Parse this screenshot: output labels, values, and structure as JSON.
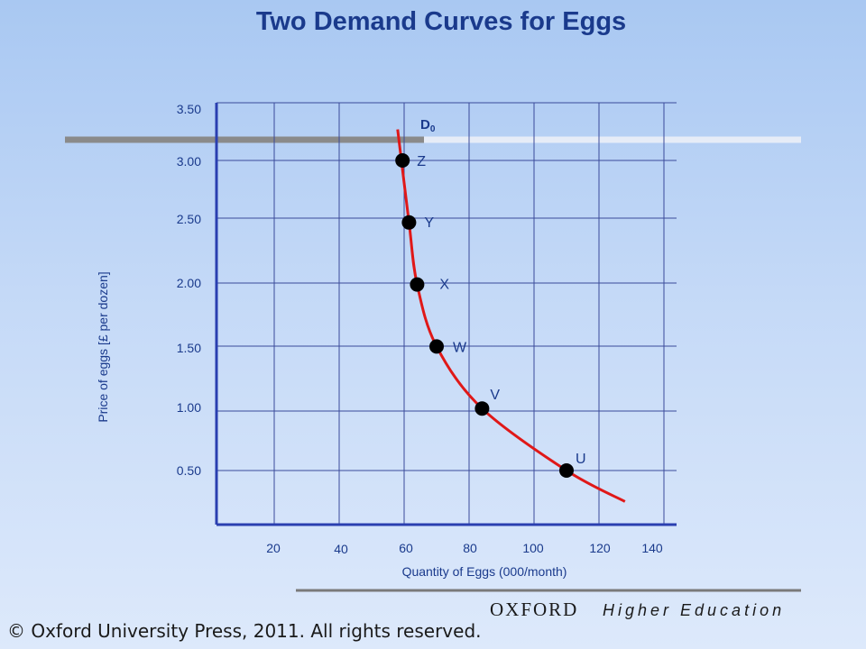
{
  "slide": {
    "title": "Two Demand Curves for Eggs",
    "brand_name": "OXFORD",
    "brand_sub": "Higher Education",
    "copyright": "© Oxford University Press, 2011. All rights reserved."
  },
  "colors": {
    "axis": "#2a3fb0",
    "grid": "#3a4a9a",
    "curve": "#e01818",
    "point": "#000000",
    "text": "#1a3a8c",
    "accent_bar": "#8a8a8a",
    "footer_line": "#7a7a7a"
  },
  "chart_data": {
    "type": "line",
    "title": "Two Demand Curves for Eggs",
    "xlabel": "Quantity of Eggs (000/month)",
    "ylabel": "Price of eggs [£ per dozen]",
    "x_ticks": [
      "20",
      "40",
      "60",
      "80",
      "100",
      "120",
      "140"
    ],
    "y_ticks": [
      "3.50",
      "3.00",
      "2.50",
      "2.00",
      "1.50",
      "1.00",
      "0.50"
    ],
    "grid": true,
    "series": [
      {
        "name": "D0",
        "label_main": "D",
        "label_sub": "0",
        "curve": [
          {
            "x": 58,
            "y": 3.25
          },
          {
            "x": 61.5,
            "y": 2.5
          },
          {
            "x": 64,
            "y": 2.0
          },
          {
            "x": 70,
            "y": 1.5
          },
          {
            "x": 84,
            "y": 1.0
          },
          {
            "x": 110,
            "y": 0.5
          },
          {
            "x": 128,
            "y": 0.25
          }
        ],
        "points": [
          {
            "label": "Z",
            "x": 59.5,
            "y": 3.0
          },
          {
            "label": "Y",
            "x": 61.5,
            "y": 2.5
          },
          {
            "label": "X",
            "x": 64,
            "y": 2.0
          },
          {
            "label": "W",
            "x": 70,
            "y": 1.5
          },
          {
            "label": "V",
            "x": 84,
            "y": 1.0
          },
          {
            "label": "U",
            "x": 110,
            "y": 0.5
          }
        ]
      }
    ]
  }
}
